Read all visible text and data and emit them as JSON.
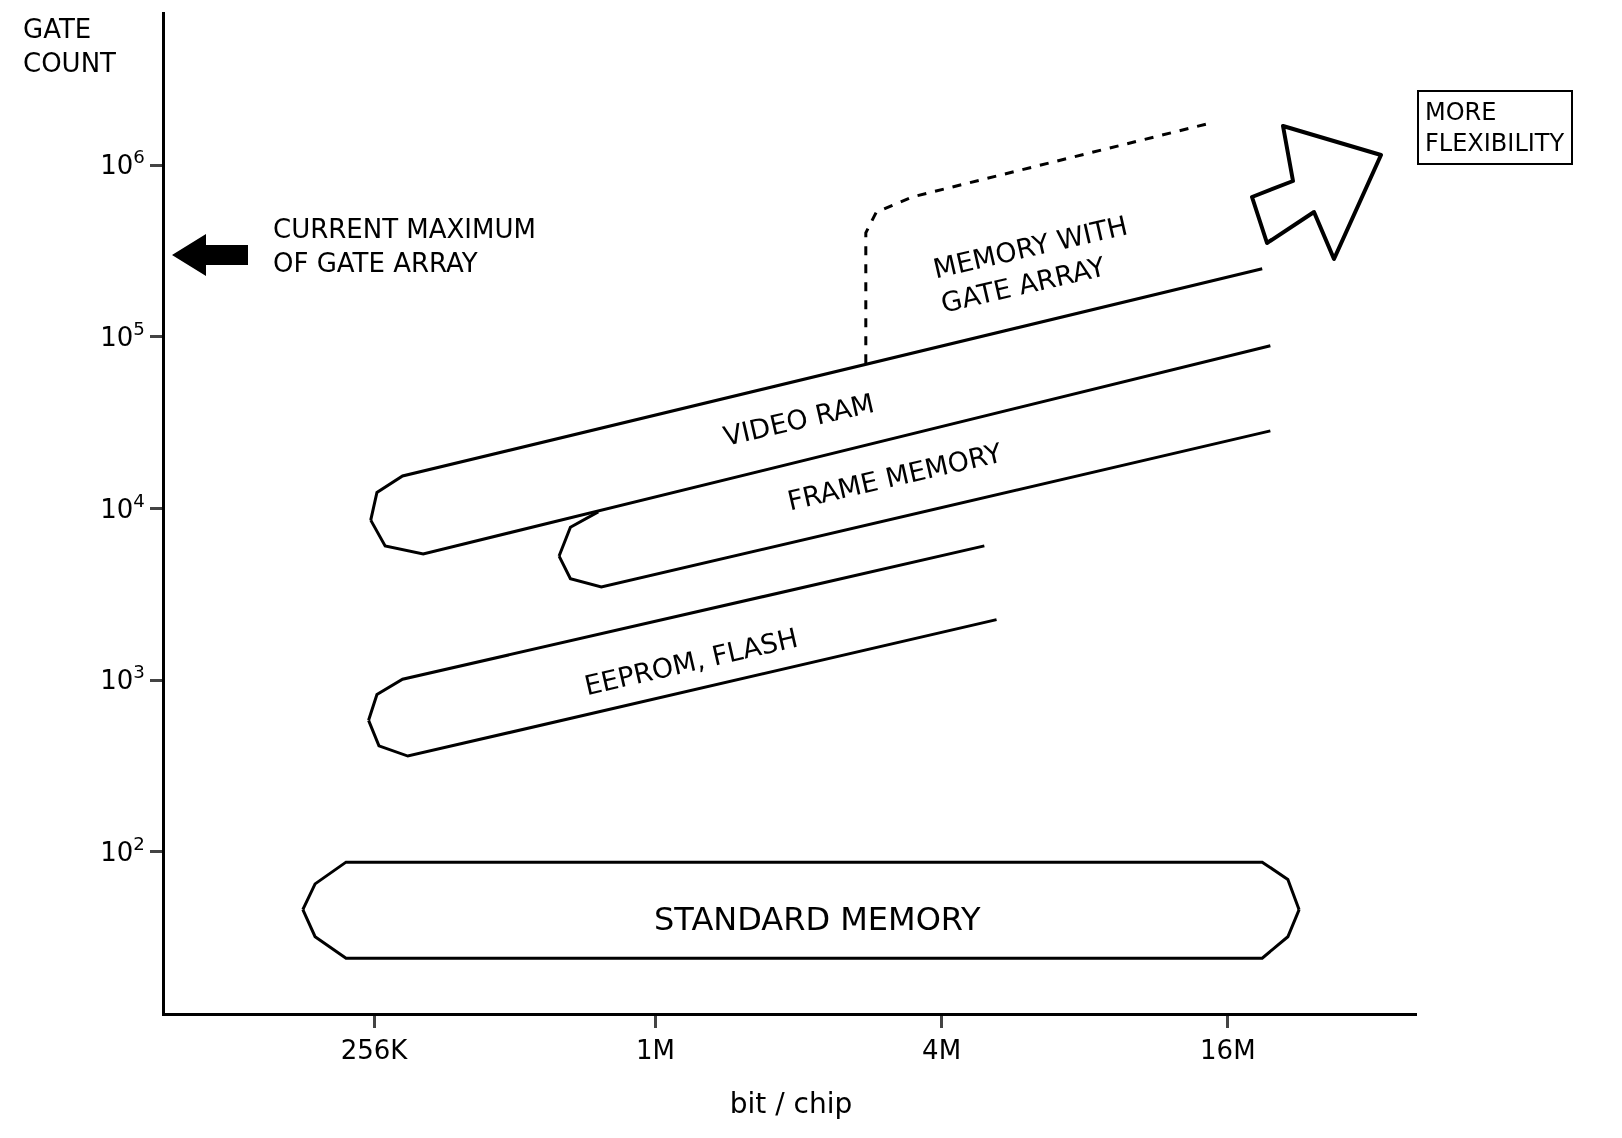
{
  "chart_data": {
    "type": "line",
    "xlabel": "bit / chip",
    "ylabel": "GATE COUNT",
    "log": "xy",
    "grid": false,
    "marker": "none",
    "xlim": [
      93000,
      40000000
    ],
    "ylim": [
      11.5,
      7800000
    ],
    "xticks": [
      {
        "value": 256000,
        "label": "256K"
      },
      {
        "value": 1000000,
        "label": "1M"
      },
      {
        "value": 4000000,
        "label": "4M"
      },
      {
        "value": 16000000,
        "label": "16M"
      }
    ],
    "yticks": [
      {
        "value": 100,
        "label": "10$^{2}$"
      },
      {
        "value": 1000,
        "label": "10$^{3}$"
      },
      {
        "value": 10000,
        "label": "10$^{4}$"
      },
      {
        "value": 100000,
        "label": "10$^{5}$"
      },
      {
        "value": 1000000,
        "label": "10$^{6}$"
      }
    ],
    "series": [
      {
        "color": "#000000",
        "line_style": "solid",
        "x": [
          181300,
          192400,
          223500,
          18900000,
          21400000,
          22600000
        ],
        "values": [
          46,
          65,
          87,
          87,
          69,
          46
        ]
      },
      {
        "color": "#000000",
        "line_style": "solid",
        "x": [
          181300,
          192400,
          223500,
          18900000,
          21400000,
          22600000
        ],
        "values": [
          46,
          32,
          24,
          24,
          32,
          46
        ]
      },
      {
        "color": "#000000",
        "line_style": "solid",
        "x": [
          249300,
          259600,
          293900,
          4920000
        ],
        "values": [
          583,
          824,
          1012,
          6050
        ]
      },
      {
        "color": "#000000",
        "line_style": "solid",
        "x": [
          249300,
          262144,
          301500,
          5220000
        ],
        "values": [
          583,
          414,
          361,
          2250
        ]
      },
      {
        "color": "#000000",
        "line_style": "solid",
        "x": [
          251900,
          259600,
          293900,
          18900000
        ],
        "values": [
          8550,
          12390,
          15450,
          249000
        ]
      },
      {
        "color": "#000000",
        "line_style": "solid",
        "x": [
          251900,
          270100,
          324800,
          19660000
        ],
        "values": [
          8550,
          6050,
          5430,
          88700
        ]
      },
      {
        "color": "#000000",
        "line_style": "solid",
        "x": [
          627300,
          662600,
          758200
        ],
        "values": [
          5280,
          7770,
          9550
        ]
      },
      {
        "color": "#000000",
        "line_style": "solid",
        "x": [
          627300,
          662600,
          769700,
          19660000
        ],
        "values": [
          5280,
          3900,
          3490,
          28300
        ]
      },
      {
        "color": "#000000",
        "line_style": "dashed",
        "x": [
          2771000,
          2771000,
          2914000,
          3470000,
          14730000
        ],
        "values": [
          70200,
          403000,
          531000,
          653000,
          1760000
        ]
      }
    ],
    "annotations": [
      "MEMORY WITH\nGATE ARRAY",
      "VIDEO RAM",
      "FRAME MEMORY",
      "EEPROM, FLASH",
      "STANDARD MEMORY",
      "CURRENT MAXIMUM\nOF GATE ARRAY",
      "MORE\nFLEXIBILITY"
    ]
  }
}
